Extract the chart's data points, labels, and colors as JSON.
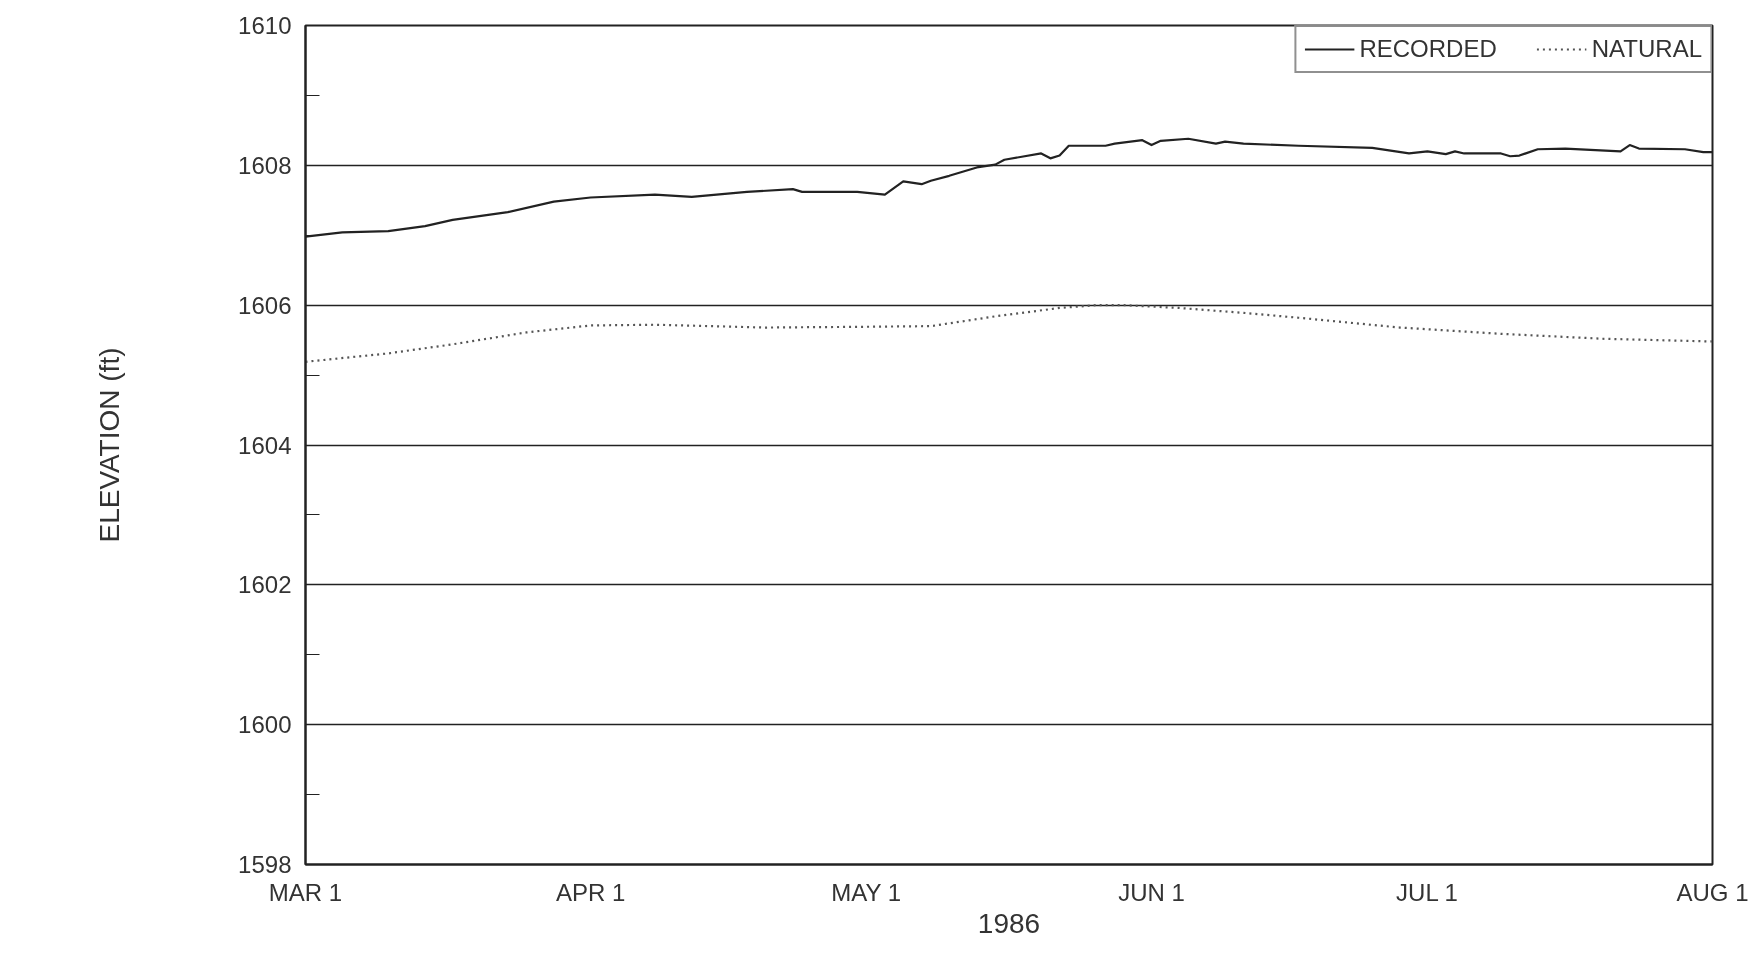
{
  "chart_data": {
    "type": "line",
    "xlabel": "1986",
    "ylabel": "ELEVATION (ft)",
    "xlim": [
      "1986-03-01",
      "1986-08-01"
    ],
    "xticks": [
      {
        "value": "1986-03-01",
        "label": "MAR 1"
      },
      {
        "value": "1986-04-01",
        "label": "APR 1"
      },
      {
        "value": "1986-05-01",
        "label": "MAY 1"
      },
      {
        "value": "1986-06-01",
        "label": "JUN 1"
      },
      {
        "value": "1986-07-01",
        "label": "JUL 1"
      },
      {
        "value": "1986-08-01",
        "label": "AUG 1"
      }
    ],
    "ylim": [
      1598,
      1610
    ],
    "yticks": [
      1598,
      {
        "value": 1599,
        "label": null
      },
      1600,
      {
        "value": 1601,
        "label": null
      },
      1602,
      {
        "value": 1603,
        "label": null
      },
      1604,
      {
        "value": 1605,
        "label": null
      },
      1606,
      {
        "value": 1607,
        "label": null
      },
      1608,
      {
        "value": 1609,
        "label": null
      },
      1610
    ],
    "grid": "y",
    "legend": "top right",
    "series": [
      {
        "name": "RECORDED",
        "color": "#222222",
        "line_style": "solid",
        "x": [
          "1986-03-01",
          "1986-03-05",
          "1986-03-10",
          "1986-03-14",
          "1986-03-17",
          "1986-03-23",
          "1986-03-28",
          "1986-04-01",
          "1986-04-08",
          "1986-04-12",
          "1986-04-18",
          "1986-04-23",
          "1986-04-24",
          "1986-04-30",
          "1986-05-03",
          "1986-05-05",
          "1986-05-07",
          "1986-05-08",
          "1986-05-10",
          "1986-05-13",
          "1986-05-15",
          "1986-05-16",
          "1986-05-20",
          "1986-05-21",
          "1986-05-22",
          "1986-05-23",
          "1986-05-27",
          "1986-05-28",
          "1986-05-31",
          "1986-06-01",
          "1986-06-02",
          "1986-06-05",
          "1986-06-08",
          "1986-06-09",
          "1986-06-11",
          "1986-06-17",
          "1986-06-25",
          "1986-06-29",
          "1986-07-01",
          "1986-07-03",
          "1986-07-04",
          "1986-07-05",
          "1986-07-09",
          "1986-07-10",
          "1986-07-11",
          "1986-07-13",
          "1986-07-16",
          "1986-07-22",
          "1986-07-23",
          "1986-07-24",
          "1986-07-29",
          "1986-07-31",
          "1986-08-01"
        ],
        "values": [
          1606.98,
          1607.04,
          1607.06,
          1607.13,
          1607.22,
          1607.33,
          1607.48,
          1607.54,
          1607.58,
          1607.55,
          1607.62,
          1607.66,
          1607.62,
          1607.62,
          1607.58,
          1607.77,
          1607.73,
          1607.78,
          1607.85,
          1607.97,
          1608.01,
          1608.08,
          1608.17,
          1608.1,
          1608.14,
          1608.28,
          1608.28,
          1608.31,
          1608.36,
          1608.29,
          1608.35,
          1608.38,
          1608.31,
          1608.34,
          1608.31,
          1608.28,
          1608.25,
          1608.17,
          1608.2,
          1608.16,
          1608.2,
          1608.17,
          1608.17,
          1608.13,
          1608.14,
          1608.23,
          1608.24,
          1608.2,
          1608.29,
          1608.24,
          1608.23,
          1608.19,
          1608.19
        ]
      },
      {
        "name": "NATURAL",
        "color": "#555555",
        "line_style": "dotted",
        "x": [
          "1986-03-01",
          "1986-03-10",
          "1986-03-17",
          "1986-03-25",
          "1986-04-01",
          "1986-04-08",
          "1986-04-20",
          "1986-04-30",
          "1986-05-08",
          "1986-05-15",
          "1986-05-22",
          "1986-05-26",
          "1986-05-29",
          "1986-06-04",
          "1986-06-11",
          "1986-06-17",
          "1986-06-28",
          "1986-07-09",
          "1986-07-20",
          "1986-08-01"
        ],
        "values": [
          1605.19,
          1605.31,
          1605.44,
          1605.61,
          1605.71,
          1605.72,
          1605.68,
          1605.69,
          1605.7,
          1605.84,
          1605.96,
          1606.0,
          1606.0,
          1605.96,
          1605.89,
          1605.82,
          1605.68,
          1605.59,
          1605.52,
          1605.48
        ]
      }
    ]
  }
}
